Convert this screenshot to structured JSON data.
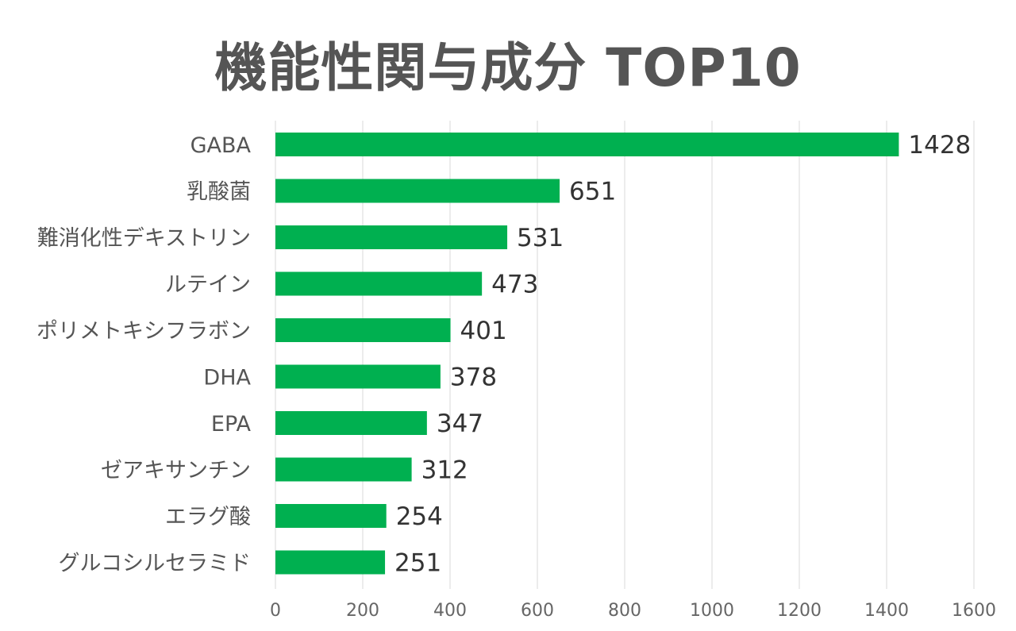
{
  "chart_data": {
    "type": "bar",
    "orientation": "horizontal",
    "title": "機能性関与成分 TOP10",
    "categories": [
      "GABA",
      "乳酸菌",
      "難消化性デキストリン",
      "ルテイン",
      "ポリメトキシフラボン",
      "DHA",
      "EPA",
      "ゼアキサンチン",
      "エラグ酸",
      "グルコシルセラミド"
    ],
    "values": [
      1428,
      651,
      531,
      473,
      401,
      378,
      347,
      312,
      254,
      251
    ],
    "xlim": [
      0,
      1600
    ],
    "xticks": [
      "0",
      "200",
      "400",
      "600",
      "800",
      "1000",
      "1200",
      "1400",
      "1600"
    ],
    "grid": true,
    "data_labels": true,
    "bar_color": "#00B050",
    "grid_color": "#D9D9D9"
  }
}
